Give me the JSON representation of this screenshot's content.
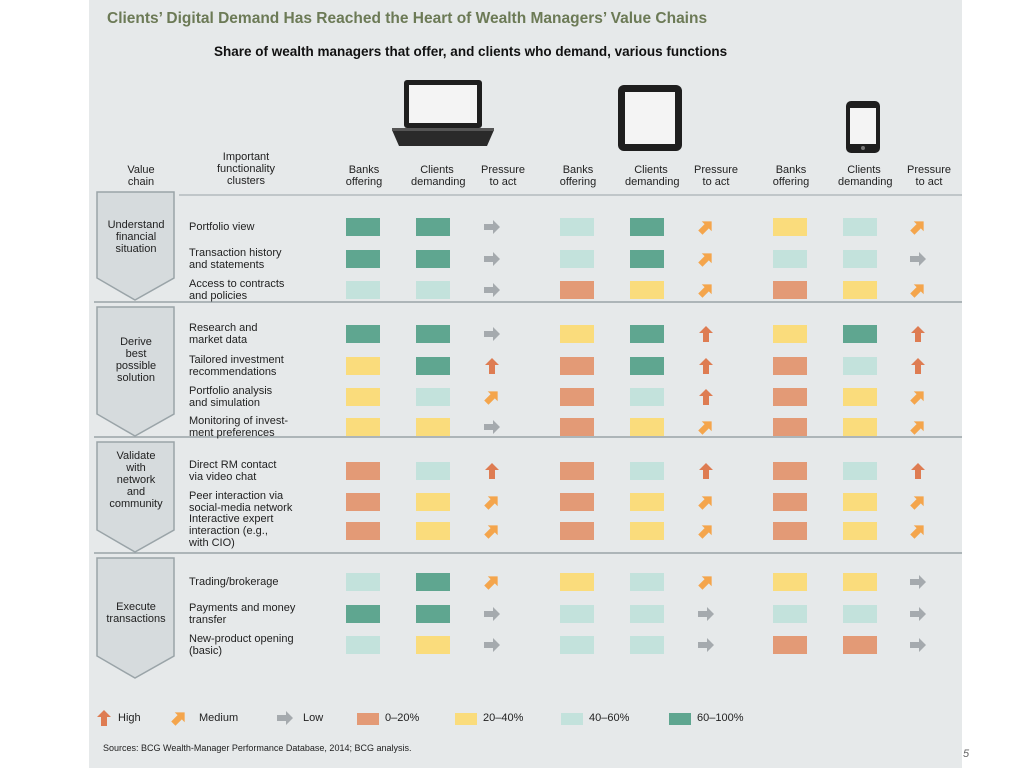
{
  "title": "Clients’ Digital Demand Has Reached the Heart of Wealth Managers’ Value Chains",
  "subtitle": "Share of wealth managers that offer, and clients who demand, various functions",
  "page_number": "5",
  "header": {
    "value_chain": "Value\nchain",
    "clusters": "Important\nfunctionality\nclusters",
    "banks_offering": "Banks\noffering",
    "clients_demanding": "Clients\ndemanding",
    "pressure_to_act": "Pressure\nto act"
  },
  "devices": [
    "laptop-icon",
    "tablet-icon",
    "smartphone-icon"
  ],
  "stages": [
    {
      "name": "Understand\nfinancial\nsituation"
    },
    {
      "name": "Derive\nbest\npossible\nsolution"
    },
    {
      "name": "Validate\nwith\nnetwork\nand\ncommunity"
    },
    {
      "name": "Execute\ntransactions"
    }
  ],
  "legend": {
    "high": "High",
    "medium": "Medium",
    "low": "Low",
    "ranges": [
      "0–20%",
      "20–40%",
      "40–60%",
      "60–100%"
    ]
  },
  "colors": {
    "0-20": "#e39a76",
    "20-40": "#fadc7c",
    "40-60": "#c3e2dc",
    "60-100": "#5fa690",
    "arrow_high": "#de7c52",
    "arrow_medium": "#f4a54c",
    "arrow_low": "#a5aaae",
    "title": "#6c7a56"
  },
  "sources": "Sources: BCG Wealth-Manager Performance Database, 2014; BCG analysis.",
  "chart_data": {
    "type": "table",
    "title": "Clients’ Digital Demand Has Reached the Heart of Wealth Managers’ Value Chains",
    "subtitle": "Share of wealth managers that offer, and clients who demand, various functions",
    "columns": [
      "Banks offering",
      "Clients demanding",
      "Pressure to act"
    ],
    "rows": [
      {
        "stage": 0,
        "label": "Portfolio view",
        "laptop": [
          "60-100",
          "60-100",
          "low"
        ],
        "tablet": [
          "40-60",
          "60-100",
          "medium"
        ],
        "phone": [
          "20-40",
          "40-60",
          "medium"
        ]
      },
      {
        "stage": 0,
        "label": "Transaction history\nand statements",
        "laptop": [
          "60-100",
          "60-100",
          "low"
        ],
        "tablet": [
          "40-60",
          "60-100",
          "medium"
        ],
        "phone": [
          "40-60",
          "40-60",
          "low"
        ]
      },
      {
        "stage": 0,
        "label": "Access to contracts\nand policies",
        "laptop": [
          "40-60",
          "40-60",
          "low"
        ],
        "tablet": [
          "0-20",
          "20-40",
          "medium"
        ],
        "phone": [
          "0-20",
          "20-40",
          "medium"
        ]
      },
      {
        "stage": 1,
        "label": "Research and\nmarket data",
        "laptop": [
          "60-100",
          "60-100",
          "low"
        ],
        "tablet": [
          "20-40",
          "60-100",
          "high"
        ],
        "phone": [
          "20-40",
          "60-100",
          "high"
        ]
      },
      {
        "stage": 1,
        "label": "Tailored investment\nrecommendations",
        "laptop": [
          "20-40",
          "60-100",
          "high"
        ],
        "tablet": [
          "0-20",
          "60-100",
          "high"
        ],
        "phone": [
          "0-20",
          "40-60",
          "high"
        ]
      },
      {
        "stage": 1,
        "label": "Portfolio analysis\nand simulation",
        "laptop": [
          "20-40",
          "40-60",
          "medium"
        ],
        "tablet": [
          "0-20",
          "40-60",
          "high"
        ],
        "phone": [
          "0-20",
          "20-40",
          "medium"
        ]
      },
      {
        "stage": 1,
        "label": "Monitoring of invest-\nment preferences",
        "laptop": [
          "20-40",
          "20-40",
          "low"
        ],
        "tablet": [
          "0-20",
          "20-40",
          "medium"
        ],
        "phone": [
          "0-20",
          "20-40",
          "medium"
        ]
      },
      {
        "stage": 2,
        "label": "Direct RM contact\nvia video chat",
        "laptop": [
          "0-20",
          "40-60",
          "high"
        ],
        "tablet": [
          "0-20",
          "40-60",
          "high"
        ],
        "phone": [
          "0-20",
          "40-60",
          "high"
        ]
      },
      {
        "stage": 2,
        "label": "Peer interaction via\nsocial-media network",
        "laptop": [
          "0-20",
          "20-40",
          "medium"
        ],
        "tablet": [
          "0-20",
          "20-40",
          "medium"
        ],
        "phone": [
          "0-20",
          "20-40",
          "medium"
        ]
      },
      {
        "stage": 2,
        "label": "Interactive expert\ninteraction (e.g.,\nwith CIO)",
        "laptop": [
          "0-20",
          "20-40",
          "medium"
        ],
        "tablet": [
          "0-20",
          "20-40",
          "medium"
        ],
        "phone": [
          "0-20",
          "20-40",
          "medium"
        ]
      },
      {
        "stage": 3,
        "label": "Trading/brokerage",
        "laptop": [
          "40-60",
          "60-100",
          "medium"
        ],
        "tablet": [
          "20-40",
          "40-60",
          "medium"
        ],
        "phone": [
          "20-40",
          "20-40",
          "low"
        ]
      },
      {
        "stage": 3,
        "label": "Payments and money\ntransfer",
        "laptop": [
          "60-100",
          "60-100",
          "low"
        ],
        "tablet": [
          "40-60",
          "40-60",
          "low"
        ],
        "phone": [
          "40-60",
          "40-60",
          "low"
        ]
      },
      {
        "stage": 3,
        "label": "New-product opening\n(basic)",
        "laptop": [
          "40-60",
          "20-40",
          "low"
        ],
        "tablet": [
          "40-60",
          "40-60",
          "low"
        ],
        "phone": [
          "0-20",
          "0-20",
          "low"
        ]
      }
    ]
  }
}
